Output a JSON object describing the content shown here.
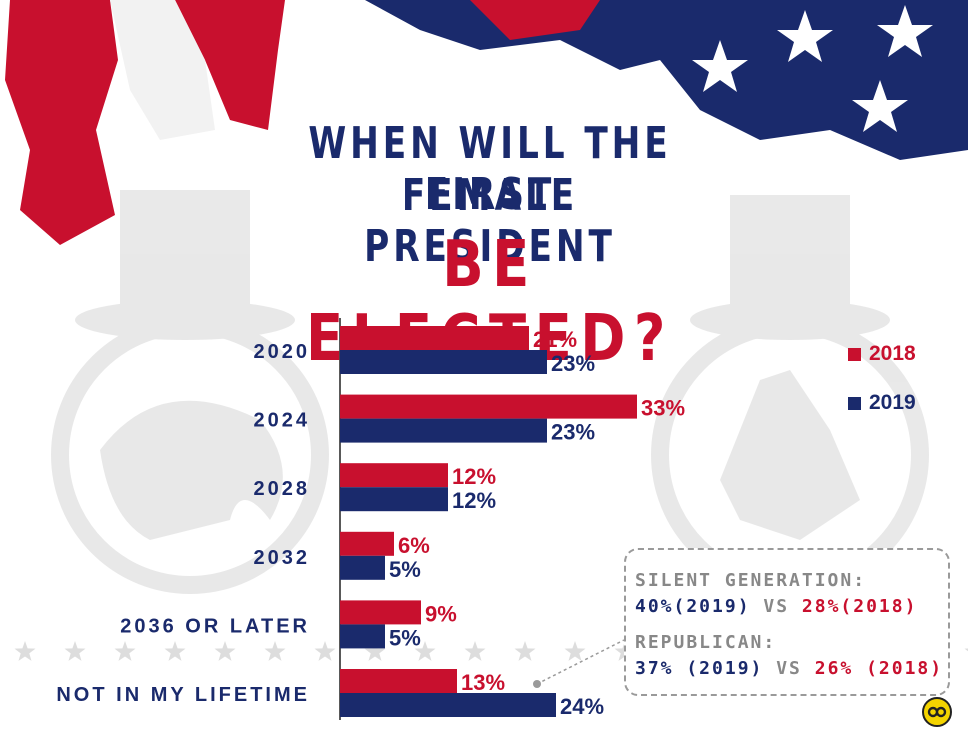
{
  "title": {
    "line1": "WHEN WILL THE FIRST",
    "line2": "FEMALE PRESIDENT",
    "line3": "BE ELECTED?"
  },
  "colors": {
    "navy": "#1a2a6c",
    "red": "#c8102e",
    "grey": "#888888"
  },
  "chart_data": {
    "type": "bar",
    "orientation": "horizontal",
    "categories": [
      "2020",
      "2024",
      "2028",
      "2032",
      "2036 OR LATER",
      "NOT IN MY LIFETIME"
    ],
    "series": [
      {
        "name": "2018",
        "color": "#c8102e",
        "values": [
          21,
          33,
          12,
          6,
          9,
          13
        ],
        "labels": [
          "21%",
          "33%",
          "12%",
          "6%",
          "9%",
          "13%"
        ]
      },
      {
        "name": "2019",
        "color": "#1a2a6c",
        "values": [
          23,
          23,
          12,
          5,
          5,
          24
        ],
        "labels": [
          "23%",
          "23%",
          "12%",
          "5%",
          "5%",
          "24%"
        ]
      }
    ],
    "legend_placement": "right",
    "grid": false,
    "xlim": [
      0,
      35
    ]
  },
  "legend": {
    "s1": "2018",
    "s2": "2019"
  },
  "callout": {
    "heading1": "SILENT GENERATION:",
    "value1_2019": "40%(2019)",
    "vs1": " VS ",
    "value1_2018": "28%(2018)",
    "heading2": "REPUBLICAN:",
    "value2_2019": "37% (2019)",
    "vs2": " VS ",
    "value2_2018": "26% (2018)"
  },
  "icons": {
    "logo": "circle-logo-icon",
    "elephant": "elephant-icon",
    "donkey": "donkey-icon"
  }
}
